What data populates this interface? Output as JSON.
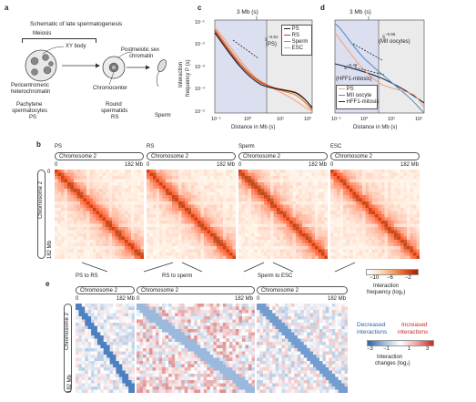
{
  "panel_letters": {
    "a": "a",
    "b": "b",
    "c": "c",
    "d": "d",
    "e": "e"
  },
  "panel_a": {
    "title": "Schematic of late spermatogenesis",
    "meiosis": "Meiosis",
    "xy_body": "XY body",
    "postmeiotic_1": "Postmeiotic sex",
    "postmeiotic_2": "chromatin",
    "pericentromeric_1": "Pericentromeric",
    "pericentromeric_2": "heterochromatin",
    "chromocenter": "Chromocenter",
    "stage1_line1": "Pachytene",
    "stage1_line2": "spermatocytes",
    "stage1_line3": "PS",
    "stage2_line1": "Round",
    "stage2_line2": "spermatids",
    "stage2_line3": "RS",
    "stage3_line1": "Sperm"
  },
  "panel_c": {
    "top_label": "3 Mb (s)",
    "slope_label": "s",
    "slope_exp": "−0.81",
    "slope_sub": "(PS)",
    "ylabel_1": "Interaction",
    "ylabel_2": "frequency P (s)",
    "xlabel": "Distance in Mb (s)",
    "yticks": [
      "10⁻¹",
      "10⁻²",
      "10⁻³",
      "10⁻⁴",
      "10⁻⁵"
    ],
    "xticks": [
      "10⁻¹",
      "10⁰",
      "10¹",
      "10²"
    ],
    "legend": [
      "PS",
      "RS",
      "Sperm",
      "ESC"
    ]
  },
  "panel_d": {
    "top_label": "3 Mb (s)",
    "slope1_label": "s",
    "slope1_exp": "−0.66",
    "slope1_sub": "(MII oocytes)",
    "slope2_label": "s",
    "slope2_exp": "−0.49",
    "slope2_sub": "(HFF1-mitosis)",
    "xlabel": "Distance in Mb (s)",
    "xticks": [
      "10⁻¹",
      "10⁰",
      "10¹",
      "10²"
    ],
    "legend": [
      "PS",
      "MII oocyte",
      "HFF1-mitosis"
    ]
  },
  "panel_b": {
    "maps": [
      {
        "title": "PS",
        "chrom": "Chromosome 2",
        "start": "0",
        "end": "182 Mb"
      },
      {
        "title": "RS",
        "chrom": "Chromosome 2",
        "start": "0",
        "end": "182 Mb"
      },
      {
        "title": "Sperm",
        "chrom": "Chromosome 2",
        "start": "0",
        "end": "182 Mb"
      },
      {
        "title": "ESC",
        "chrom": "Chromosome 2",
        "start": "0",
        "end": "182 Mb"
      }
    ],
    "side_chrom": "Chromosome 2",
    "side_start": "0",
    "side_end": "182 Mb",
    "colorbar_ticks": [
      "−10",
      "−6",
      "−2"
    ],
    "colorbar_label_1": "Interaction",
    "colorbar_label_2": "frequency (log₂)"
  },
  "panel_e": {
    "maps": [
      {
        "title": "PS to RS",
        "chrom": "Chromosome 2",
        "start": "0",
        "end": "182 Mb"
      },
      {
        "title": "RS to sperm",
        "chrom": "Chromosome 2",
        "start": "0",
        "end": "182 Mb"
      },
      {
        "title": "Sperm to ESC",
        "chrom": "Chromosome 2",
        "start": "0",
        "end": "182 Mb"
      }
    ],
    "side_chrom": "Chromosome 2",
    "side_start": "0",
    "side_end": "182 Mb",
    "decreased_1": "Decreased",
    "decreased_2": "interactions",
    "increased_1": "Increased",
    "increased_2": "interactions",
    "colorbar_ticks": [
      "−3",
      "−1",
      "1",
      "3"
    ],
    "colorbar_label_1": "Interaction",
    "colorbar_label_2": "changes (log₂)"
  },
  "colors": {
    "PS": "#1c1c1c",
    "RS": "#c0392b",
    "Sperm": "#e67e22",
    "ESC": "#f4a582",
    "MII": "#5b8fc4",
    "HFF1": "#1b2a4a",
    "shade_left": "#d9dcef",
    "shade_right": "#e6e6e6",
    "decreased": "#2f5fa8",
    "increased": "#c62828"
  }
}
